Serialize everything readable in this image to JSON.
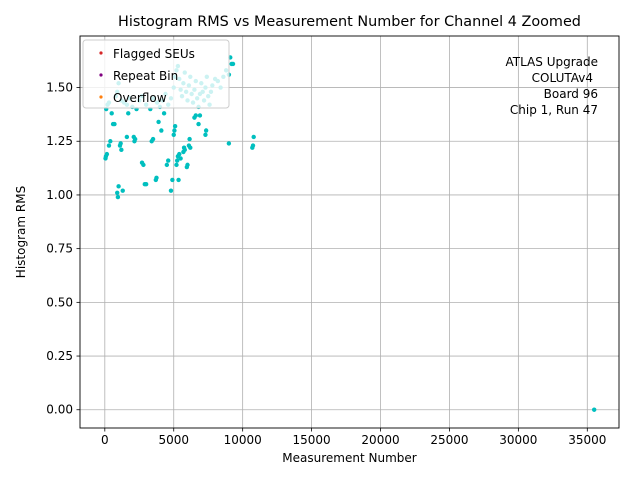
{
  "chart_data": {
    "type": "scatter",
    "title": "Histogram RMS vs Measurement Number for Channel 4 Zoomed",
    "xlabel": "Measurement Number",
    "ylabel": "Histogram RMS",
    "xlim": [
      -1800,
      37300
    ],
    "ylim": [
      -0.085,
      1.74
    ],
    "grid": true,
    "xticks": [
      0,
      5000,
      10000,
      15000,
      20000,
      25000,
      30000,
      35000
    ],
    "yticks": [
      0.0,
      0.25,
      0.5,
      0.75,
      1.0,
      1.25,
      1.5
    ],
    "xtick_labels": [
      "0",
      "5000",
      "10000",
      "15000",
      "20000",
      "25000",
      "30000",
      "35000"
    ],
    "ytick_labels": [
      "0.00",
      "0.25",
      "0.50",
      "0.75",
      "1.00",
      "1.25",
      "1.50"
    ],
    "legend": {
      "placement": "upper-left",
      "entries": [
        {
          "label": "Flagged SEUs",
          "color": "#d62728"
        },
        {
          "label": "Repeat Bin",
          "color": "#800080"
        },
        {
          "label": "Overflow",
          "color": "#ff7f0e"
        }
      ]
    },
    "annotation": [
      "ATLAS Upgrade",
      "COLUTAv4",
      "Board 96",
      "Chip 1, Run 47"
    ],
    "series": [
      {
        "name": "Histogram RMS",
        "color": "#00bfbf",
        "points": [
          [
            35500,
            0.0
          ],
          [
            50,
            1.17
          ],
          [
            80,
            1.18
          ],
          [
            150,
            1.19
          ],
          [
            300,
            1.23
          ],
          [
            400,
            1.25
          ],
          [
            600,
            1.33
          ],
          [
            700,
            1.33
          ],
          [
            900,
            1.01
          ],
          [
            950,
            0.99
          ],
          [
            1000,
            1.04
          ],
          [
            1100,
            1.23
          ],
          [
            1150,
            1.24
          ],
          [
            1200,
            1.21
          ],
          [
            1300,
            1.02
          ],
          [
            1600,
            1.27
          ],
          [
            1700,
            1.38
          ],
          [
            2100,
            1.27
          ],
          [
            2150,
            1.25
          ],
          [
            2200,
            1.26
          ],
          [
            2700,
            1.15
          ],
          [
            2800,
            1.14
          ],
          [
            2900,
            1.05
          ],
          [
            3000,
            1.05
          ],
          [
            3400,
            1.25
          ],
          [
            3500,
            1.26
          ],
          [
            3700,
            1.07
          ],
          [
            3750,
            1.08
          ],
          [
            3900,
            1.34
          ],
          [
            4100,
            1.3
          ],
          [
            4300,
            1.38
          ],
          [
            4500,
            1.14
          ],
          [
            4600,
            1.16
          ],
          [
            4800,
            1.02
          ],
          [
            4900,
            1.07
          ],
          [
            5000,
            1.28
          ],
          [
            5050,
            1.3
          ],
          [
            5100,
            1.32
          ],
          [
            5200,
            1.14
          ],
          [
            5250,
            1.16
          ],
          [
            5300,
            1.18
          ],
          [
            5350,
            1.07
          ],
          [
            5400,
            1.19
          ],
          [
            5500,
            1.17
          ],
          [
            5700,
            1.2
          ],
          [
            5750,
            1.22
          ],
          [
            5800,
            1.21
          ],
          [
            5950,
            1.13
          ],
          [
            6000,
            1.14
          ],
          [
            6100,
            1.23
          ],
          [
            6150,
            1.26
          ],
          [
            6200,
            1.22
          ],
          [
            6500,
            1.36
          ],
          [
            6600,
            1.37
          ],
          [
            6800,
            1.33
          ],
          [
            6900,
            1.37
          ],
          [
            7300,
            1.28
          ],
          [
            7350,
            1.3
          ],
          [
            9000,
            1.24
          ],
          [
            10700,
            1.22
          ],
          [
            10750,
            1.23
          ],
          [
            10800,
            1.27
          ],
          [
            9100,
            1.64
          ],
          [
            9200,
            1.61
          ],
          [
            9300,
            1.61
          ],
          [
            100,
            1.4
          ],
          [
            200,
            1.42
          ],
          [
            300,
            1.43
          ],
          [
            500,
            1.38
          ],
          [
            800,
            1.46
          ],
          [
            900,
            1.48
          ],
          [
            1000,
            1.52
          ],
          [
            1200,
            1.44
          ],
          [
            1400,
            1.43
          ],
          [
            1600,
            1.42
          ],
          [
            1800,
            1.45
          ],
          [
            2000,
            1.41
          ],
          [
            2300,
            1.4
          ],
          [
            2500,
            1.44
          ],
          [
            2700,
            1.46
          ],
          [
            3000,
            1.42
          ],
          [
            3300,
            1.4
          ],
          [
            3500,
            1.45
          ],
          [
            3800,
            1.43
          ],
          [
            4000,
            1.41
          ],
          [
            4200,
            1.44
          ],
          [
            4400,
            1.47
          ],
          [
            4600,
            1.42
          ],
          [
            4800,
            1.45
          ],
          [
            5000,
            1.5
          ],
          [
            5100,
            1.55
          ],
          [
            5200,
            1.58
          ],
          [
            5300,
            1.6
          ],
          [
            5400,
            1.54
          ],
          [
            5500,
            1.49
          ],
          [
            5600,
            1.46
          ],
          [
            5700,
            1.52
          ],
          [
            5800,
            1.57
          ],
          [
            5900,
            1.48
          ],
          [
            6000,
            1.44
          ],
          [
            6100,
            1.51
          ],
          [
            6200,
            1.55
          ],
          [
            6300,
            1.47
          ],
          [
            6400,
            1.43
          ],
          [
            6500,
            1.49
          ],
          [
            6600,
            1.53
          ],
          [
            6700,
            1.45
          ],
          [
            6800,
            1.41
          ],
          [
            6900,
            1.47
          ],
          [
            7000,
            1.52
          ],
          [
            7100,
            1.48
          ],
          [
            7200,
            1.44
          ],
          [
            7300,
            1.5
          ],
          [
            7400,
            1.55
          ],
          [
            7500,
            1.46
          ],
          [
            7600,
            1.42
          ],
          [
            7700,
            1.48
          ],
          [
            7800,
            1.51
          ],
          [
            8000,
            1.54
          ],
          [
            8200,
            1.53
          ],
          [
            8400,
            1.5
          ],
          [
            8600,
            1.55
          ],
          [
            8800,
            1.58
          ],
          [
            9000,
            1.56
          ]
        ]
      }
    ]
  }
}
